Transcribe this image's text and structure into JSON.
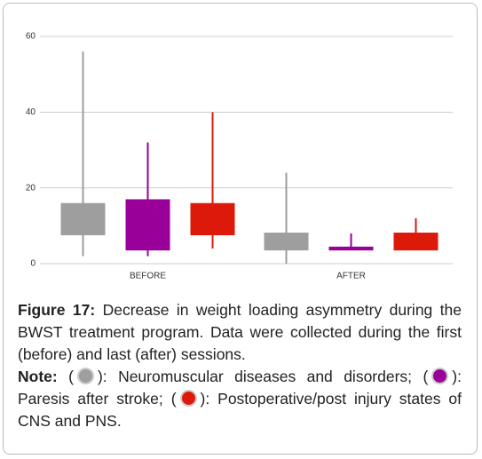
{
  "chart_data": {
    "type": "box",
    "categories": [
      "BEFORE",
      "AFTER"
    ],
    "series": [
      {
        "color": "#9e9e9e",
        "min": [
          2,
          0
        ],
        "q1": [
          7.5,
          3.5
        ],
        "q3": [
          16,
          8.2
        ],
        "max": [
          56,
          24
        ]
      },
      {
        "color": "#990099",
        "min": [
          2,
          3.5
        ],
        "q1": [
          3.5,
          3.5
        ],
        "q3": [
          17,
          4.5
        ],
        "max": [
          32,
          8
        ]
      },
      {
        "color": "#dd1a0a",
        "min": [
          4,
          3.5
        ],
        "q1": [
          7.5,
          3.5
        ],
        "q3": [
          16,
          8.2
        ],
        "max": [
          40,
          12
        ]
      }
    ],
    "ylim": [
      0,
      60
    ],
    "yticks": [
      0,
      20,
      40,
      60
    ],
    "grid": true
  },
  "caption": {
    "label": "Figure 17:",
    "text": "Decrease in weight loading asymmetry during the BWST treatment program. Data were collected during the first (before) and last (after) sessions."
  },
  "note": {
    "label": "Note:",
    "open": "(",
    "close": "):",
    "items": [
      "Neuromuscular diseases and disorders;",
      "Paresis after stroke;",
      "Postoperative/post injury states of CNS and PNS."
    ]
  }
}
